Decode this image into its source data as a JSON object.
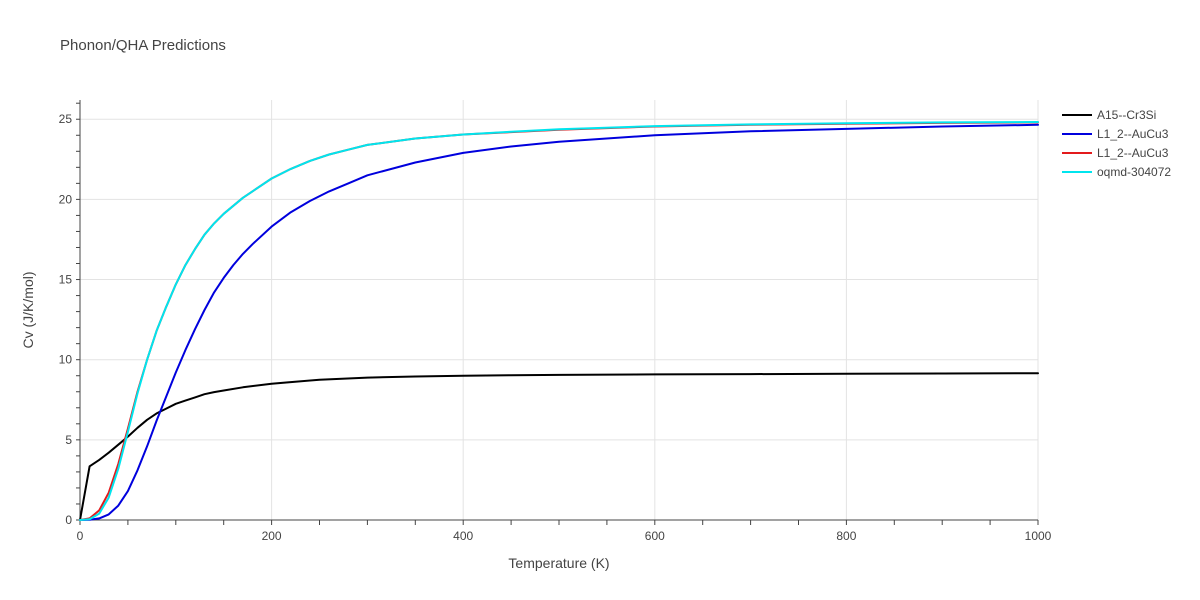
{
  "chart_data": {
    "type": "line",
    "title": "Phonon/QHA Predictions",
    "xlabel": "Temperature (K)",
    "ylabel": "Cv (J/K/mol)",
    "xlim": [
      0,
      1000
    ],
    "ylim": [
      0,
      26.2
    ],
    "x_ticks": [
      0,
      200,
      400,
      600,
      800,
      1000
    ],
    "y_ticks": [
      0,
      5,
      10,
      15,
      20,
      25
    ],
    "grid": true,
    "legend_position": "top-right",
    "series": [
      {
        "name": "A15--Cr3Si",
        "color": "#000000",
        "x": [
          0,
          10,
          20,
          30,
          40,
          50,
          60,
          70,
          80,
          90,
          100,
          110,
          120,
          130,
          140,
          150,
          170,
          200,
          250,
          300,
          350,
          400,
          450,
          500,
          600,
          700,
          800,
          900,
          1000
        ],
        "y": [
          0,
          3.35,
          3.75,
          4.2,
          4.7,
          5.2,
          5.75,
          6.25,
          6.65,
          6.95,
          7.25,
          7.45,
          7.65,
          7.85,
          7.98,
          8.08,
          8.28,
          8.5,
          8.75,
          8.88,
          8.95,
          9.0,
          9.03,
          9.05,
          9.08,
          9.1,
          9.12,
          9.14,
          9.16
        ]
      },
      {
        "name": "L1_2--AuCu3",
        "color": "#0000dd",
        "x": [
          0,
          10,
          20,
          30,
          40,
          50,
          60,
          70,
          80,
          90,
          100,
          110,
          120,
          130,
          140,
          150,
          160,
          170,
          180,
          200,
          220,
          240,
          260,
          280,
          300,
          350,
          400,
          450,
          500,
          600,
          700,
          800,
          900,
          1000
        ],
        "y": [
          0,
          0.02,
          0.1,
          0.35,
          0.9,
          1.8,
          3.1,
          4.6,
          6.2,
          7.7,
          9.2,
          10.6,
          11.9,
          13.1,
          14.2,
          15.1,
          15.9,
          16.6,
          17.2,
          18.3,
          19.2,
          19.9,
          20.5,
          21.0,
          21.5,
          22.3,
          22.9,
          23.3,
          23.6,
          24.0,
          24.25,
          24.4,
          24.55,
          24.65
        ]
      },
      {
        "name": "L1_2--AuCu3",
        "color": "#e31a1c",
        "x": [
          0,
          10,
          20,
          30,
          40,
          50,
          60,
          70,
          80,
          90,
          100,
          110,
          120,
          130,
          140,
          150,
          160,
          170,
          180,
          200,
          220,
          240,
          260,
          280,
          300,
          350,
          400,
          450,
          500,
          600,
          700,
          800,
          900,
          1000
        ],
        "y": [
          0,
          0.1,
          0.6,
          1.7,
          3.5,
          5.7,
          8.0,
          10.0,
          11.8,
          13.3,
          14.7,
          15.9,
          16.9,
          17.8,
          18.5,
          19.1,
          19.6,
          20.1,
          20.5,
          21.3,
          21.9,
          22.4,
          22.8,
          23.1,
          23.4,
          23.8,
          24.05,
          24.2,
          24.35,
          24.55,
          24.65,
          24.72,
          24.77,
          24.8
        ]
      },
      {
        "name": "oqmd-304072",
        "color": "#00e5ee",
        "x": [
          0,
          10,
          20,
          30,
          40,
          50,
          60,
          70,
          80,
          90,
          100,
          110,
          120,
          130,
          140,
          150,
          160,
          170,
          180,
          200,
          220,
          240,
          260,
          280,
          300,
          350,
          400,
          450,
          500,
          600,
          700,
          800,
          900,
          1000
        ],
        "y": [
          0,
          0.05,
          0.4,
          1.4,
          3.2,
          5.5,
          7.9,
          10.0,
          11.8,
          13.3,
          14.7,
          15.9,
          16.9,
          17.8,
          18.5,
          19.1,
          19.6,
          20.1,
          20.5,
          21.3,
          21.9,
          22.4,
          22.8,
          23.1,
          23.4,
          23.8,
          24.05,
          24.22,
          24.37,
          24.57,
          24.68,
          24.75,
          24.8,
          24.83
        ]
      }
    ]
  }
}
